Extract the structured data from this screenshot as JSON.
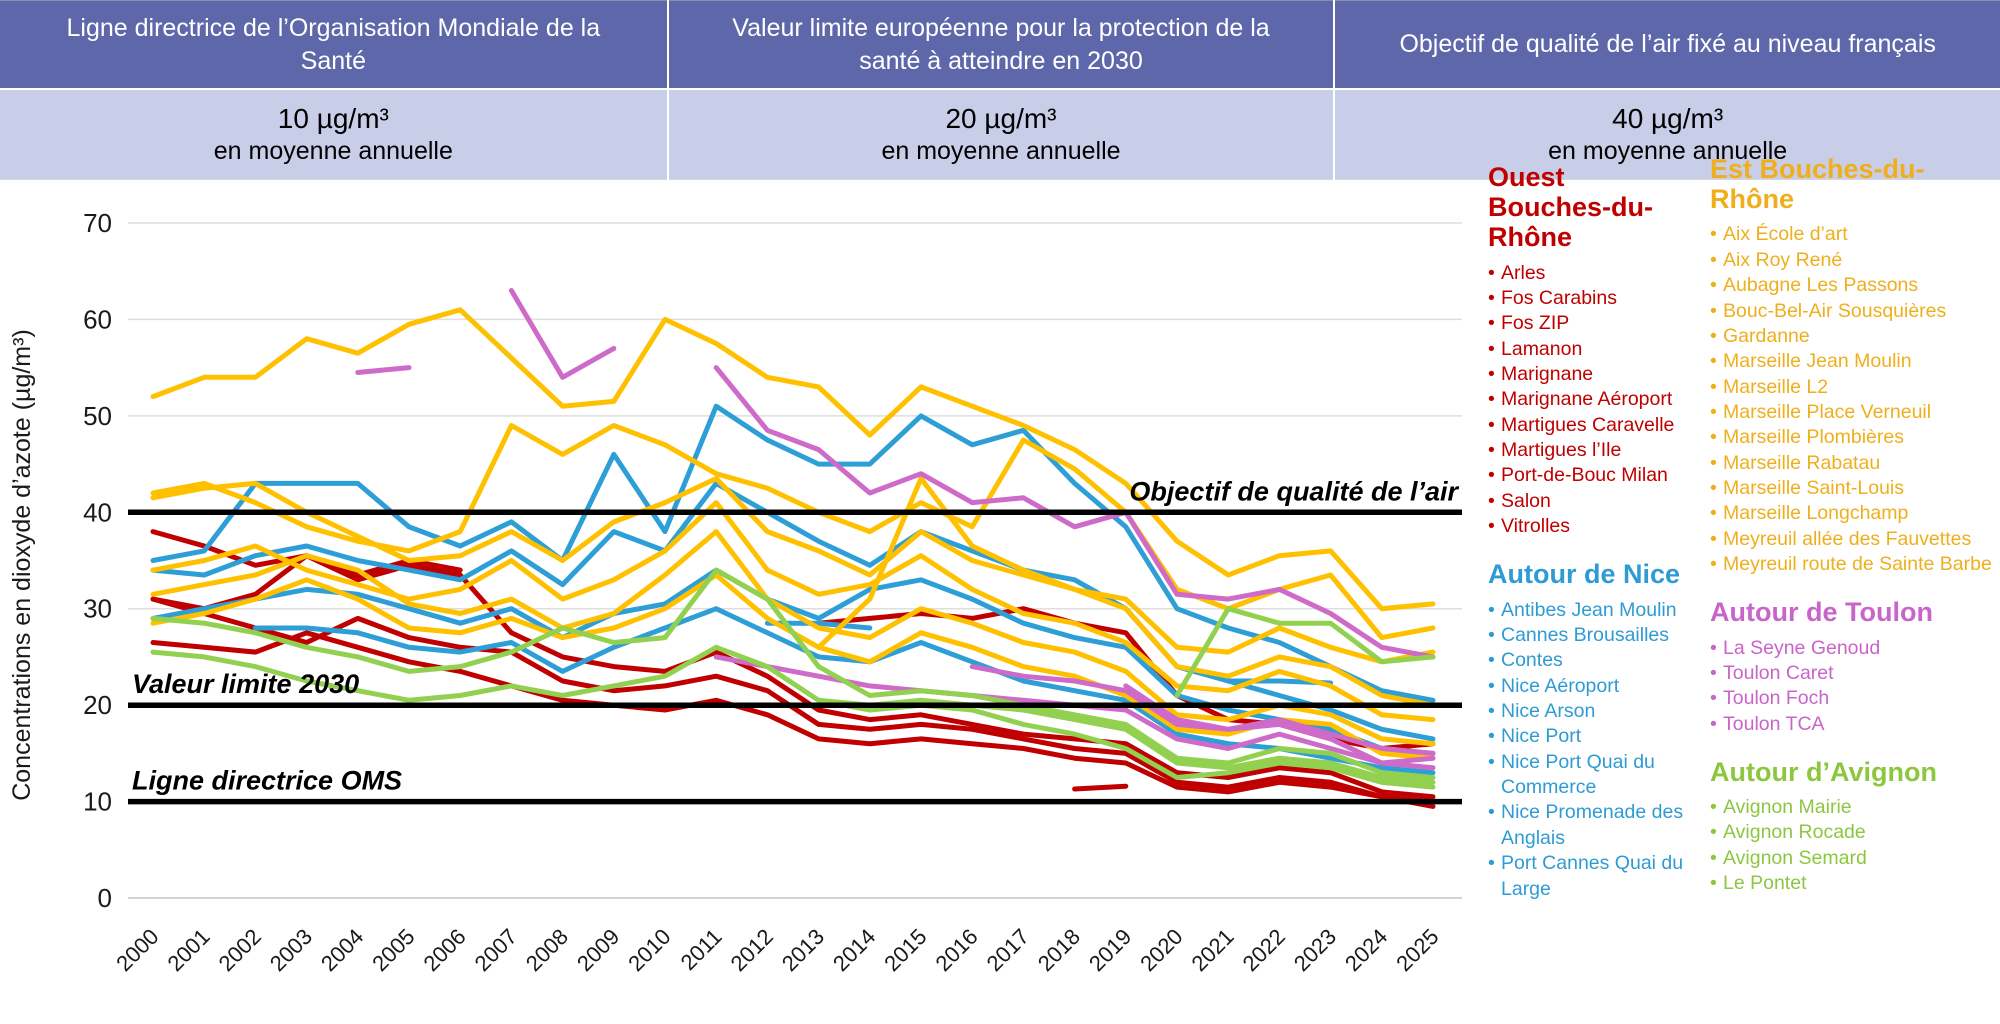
{
  "header": {
    "columns": [
      {
        "title": "Ligne directrice de l’Organisation Mondiale de la Santé",
        "value": "10 µg/m³",
        "note": "en moyenne annuelle"
      },
      {
        "title": "Valeur limite européenne pour la protection de la santé à atteindre en 2030",
        "value": "20 µg/m³",
        "note": "en moyenne annuelle"
      },
      {
        "title": "Objectif de qualité de l’air fixé au niveau français",
        "value": "40 µg/m³",
        "note": "en moyenne annuelle"
      }
    ]
  },
  "chart_data": {
    "type": "line",
    "title": "",
    "xlabel": "",
    "ylabel": "Concentrations en dioxyde d’azote (µg/m³)",
    "ylim": [
      0,
      70
    ],
    "yticks": [
      0,
      10,
      20,
      30,
      40,
      50,
      60,
      70
    ],
    "grid": "horizontal",
    "legend_position": "right",
    "categories": [
      2000,
      2001,
      2002,
      2003,
      2004,
      2005,
      2006,
      2007,
      2008,
      2009,
      2010,
      2011,
      2012,
      2013,
      2014,
      2015,
      2016,
      2017,
      2018,
      2019,
      2020,
      2021,
      2022,
      2023,
      2024,
      2025
    ],
    "colors": {
      "ouest": "#c00000",
      "nice": "#2e9fd6",
      "est": "#ffc000",
      "toulon": "#ce6bc8",
      "avignon": "#92d050"
    },
    "reference_lines": [
      {
        "value": 40,
        "label": "Objectif de qualité de l’air",
        "align": "right"
      },
      {
        "value": 20,
        "label": "Valeur limite 2030",
        "align": "left"
      },
      {
        "value": 10,
        "label": "Ligne directrice OMS",
        "align": "left"
      }
    ],
    "series": [
      {
        "name": "Marignane",
        "group": "ouest",
        "start": 2000,
        "values": [
          38,
          36.5,
          34.5,
          35.5,
          33.5,
          35,
          34
        ]
      },
      {
        "name": "Fos Carabins",
        "group": "ouest",
        "start": 2000,
        "values": [
          31,
          30,
          31.5,
          35.5,
          33,
          34.5,
          33.5,
          27.5,
          25,
          24,
          23.5,
          25.5,
          23,
          19.5,
          18.5,
          19,
          18,
          17,
          16.5,
          16,
          13,
          12.5,
          13.5,
          13,
          11,
          10.5
        ]
      },
      {
        "name": "Port-de-Bouc Milan",
        "group": "ouest",
        "start": 2000,
        "values": [
          31,
          29.5,
          28,
          26.5,
          29,
          27,
          26,
          25.5,
          22.5,
          21.5,
          22,
          23,
          21.5,
          18,
          17.5,
          18,
          17.5,
          16.5,
          15.5,
          15,
          12,
          11.5,
          12.5,
          12,
          10.5,
          9.5
        ]
      },
      {
        "name": "Salon",
        "group": "ouest",
        "start": 2000,
        "values": [
          26.5,
          26,
          25.5,
          27.5,
          26,
          24.5,
          23.5,
          22,
          20.5,
          20,
          19.5,
          20.5,
          19,
          16.5,
          16,
          16.5,
          16,
          15.5,
          14.5,
          14,
          11.5,
          11,
          12,
          11.5,
          10.5,
          10
        ]
      },
      {
        "name": "Martigues l’Ile",
        "group": "ouest",
        "start": 2013,
        "values": [
          28.5,
          29,
          29.5,
          29,
          30,
          28.5,
          27.5,
          21,
          18.5,
          18,
          16.5,
          15.5,
          16
        ]
      },
      {
        "name": "Arles",
        "group": "ouest",
        "start": 2018,
        "values": [
          11.3,
          11.6
        ]
      },
      {
        "name": "Nice Promenade des Anglais",
        "group": "nice",
        "start": 2000,
        "values": [
          35,
          36,
          43,
          43,
          43,
          38.5,
          36.5,
          39,
          35,
          46,
          38,
          51,
          47.5,
          45,
          45,
          50,
          47,
          48.5,
          43,
          38.5,
          30,
          28,
          26.5,
          24,
          21.5,
          20.5
        ]
      },
      {
        "name": "Nice Arson",
        "group": "nice",
        "start": 2000,
        "values": [
          34,
          33.5,
          35.5,
          36.5,
          35,
          34,
          33,
          36,
          32.5,
          38,
          36,
          43,
          40,
          37,
          34.5,
          38,
          36,
          34,
          33,
          30,
          24,
          22.5,
          21,
          19.5,
          17.5,
          16.5
        ]
      },
      {
        "name": "Cannes Brousailles",
        "group": "nice",
        "start": 2000,
        "values": [
          29,
          30,
          31,
          32,
          31.5,
          30,
          28.5,
          30,
          27,
          29.5,
          30.5,
          34,
          31,
          29,
          32,
          33,
          31,
          28.5,
          27,
          26,
          21,
          19.5,
          18.5,
          17.5,
          15.5,
          15
        ]
      },
      {
        "name": "Antibes Jean Moulin",
        "group": "nice",
        "start": 2002,
        "values": [
          28,
          28,
          27.5,
          26,
          25.5,
          26.5,
          23.5,
          26,
          28,
          30,
          27.5,
          25,
          24.5,
          26.5,
          24.5,
          22.5,
          21.5,
          20.5,
          17,
          16,
          15.5,
          14.5,
          13.5,
          13
        ]
      },
      {
        "name": "Nice Port",
        "group": "nice",
        "start": 2012,
        "values": [
          28.5,
          28.5,
          28
        ]
      },
      {
        "name": "Nice Port Quai du Commerce",
        "group": "nice",
        "start": 2021,
        "values": [
          22.5,
          22.5,
          22.3
        ]
      },
      {
        "name": "Marseille Rabatau",
        "group": "est",
        "start": 2000,
        "values": [
          52,
          54,
          54,
          58,
          56.5,
          59.5,
          61,
          56,
          51,
          51.5,
          60,
          57.5,
          54,
          53,
          48,
          53,
          51,
          49,
          46.5,
          43,
          37,
          33.5,
          35.5,
          36,
          30,
          30.5
        ]
      },
      {
        "name": "Marseille Plombières",
        "group": "est",
        "start": 2000,
        "values": [
          42,
          43,
          41,
          38.5,
          37,
          36,
          38,
          49,
          46,
          49,
          47,
          44,
          42.5,
          40,
          38,
          41,
          38.5,
          47.5,
          44.5,
          40,
          32,
          30,
          32,
          33.5,
          27,
          28
        ]
      },
      {
        "name": "Marseille Saint-Louis",
        "group": "est",
        "start": 2000,
        "values": [
          41.5,
          42.5,
          43,
          40,
          37.5,
          35,
          35.5,
          38,
          35,
          39,
          41,
          43.5,
          38,
          36,
          33.5,
          38,
          35,
          33.5,
          32,
          31,
          26,
          25.5,
          28,
          26,
          24.5,
          25.5
        ]
      },
      {
        "name": "Aix Roy René",
        "group": "est",
        "start": 2000,
        "values": [
          34,
          35,
          36.5,
          34,
          32.5,
          31,
          32,
          35,
          31,
          33,
          36,
          41,
          34,
          31.5,
          32.5,
          35.5,
          32,
          29.5,
          28.5,
          26.5,
          22,
          21.5,
          23.5,
          22,
          19,
          18.5
        ]
      },
      {
        "name": "Marseille Longchamp",
        "group": "est",
        "start": 2000,
        "values": [
          31.5,
          32.5,
          33.5,
          35.5,
          34,
          30.5,
          29.5,
          31,
          28,
          29.5,
          33.5,
          38,
          31,
          28,
          27,
          30,
          28.5,
          26.5,
          25.5,
          23.5,
          19,
          18.5,
          20,
          19,
          16.5,
          16
        ]
      },
      {
        "name": "Gardanne",
        "group": "est",
        "start": 2000,
        "values": [
          28.5,
          29.5,
          31,
          33,
          31,
          28,
          27.5,
          29,
          27,
          28,
          30,
          33.5,
          29,
          26,
          24.5,
          27.5,
          26,
          24,
          23,
          21,
          17.5,
          17,
          18.5,
          18,
          15,
          14.5
        ]
      },
      {
        "name": "Marseille Jean Moulin",
        "group": "est",
        "start": 2013,
        "values": [
          26,
          31,
          43.5,
          36.5,
          34,
          32,
          30,
          24,
          23,
          25,
          24,
          21,
          20
        ]
      },
      {
        "name": "Toulon Foch",
        "group": "toulon",
        "start": 2004,
        "values": [
          54.5,
          55,
          null,
          63,
          54,
          57,
          null,
          55,
          48.5,
          46.5,
          42,
          44,
          41,
          41.5,
          38.5,
          40,
          31.5,
          31,
          32,
          29.5,
          26,
          25
        ]
      },
      {
        "name": "Toulon Caret",
        "group": "toulon",
        "start": 2011,
        "values": [
          25,
          24,
          23,
          22,
          21.5,
          21,
          20.5,
          20,
          19.5,
          16.5,
          15.5,
          17,
          15.5,
          14,
          14.5
        ]
      },
      {
        "name": "La Seyne Genoud",
        "group": "toulon",
        "start": 2016,
        "values": [
          24,
          23,
          22.5,
          21.5,
          18,
          17.5,
          18.5,
          17,
          15.5,
          15
        ]
      },
      {
        "name": "Toulon TCA",
        "group": "toulon",
        "start": 2019,
        "values": [
          22,
          18.5,
          17.5,
          18,
          16.5,
          14,
          13.5
        ]
      },
      {
        "name": "Avignon Rocade",
        "group": "avignon",
        "start": 2000,
        "values": [
          29,
          28.5,
          27.5,
          26,
          25,
          23.5,
          24,
          25.5,
          28,
          26.5,
          27,
          34,
          31,
          24,
          21,
          21.5,
          21,
          20,
          19,
          18,
          14.5,
          14,
          15.5,
          15,
          13,
          12.5
        ]
      },
      {
        "name": "Avignon Mairie",
        "group": "avignon",
        "start": 2000,
        "values": [
          25.5,
          25,
          24,
          22.5,
          21.5,
          20.5,
          21,
          22,
          21,
          22,
          23,
          26,
          24,
          20.5,
          19.5,
          20,
          19.5,
          18,
          17,
          15.5,
          12.5,
          13,
          14,
          13.5,
          12,
          11.5
        ]
      },
      {
        "name": "Le Pontet",
        "group": "avignon",
        "start": 2013,
        "values": [
          20.5,
          20,
          20.5,
          20,
          19.5,
          18.5,
          17.5,
          14,
          13.5,
          14.5,
          14,
          12.5,
          12
        ]
      },
      {
        "name": "Avignon Semard",
        "group": "avignon",
        "start": 2020,
        "values": [
          21,
          30,
          28.5,
          28.5,
          24.5,
          25
        ]
      }
    ]
  },
  "legend": {
    "groups": [
      {
        "column": 1,
        "group": "ouest",
        "text_color": "#c00000",
        "title": "Ouest Bouches-du-Rhône",
        "stations": [
          "Arles",
          "Fos Carabins",
          "Fos ZIP",
          "Lamanon",
          "Marignane",
          "Marignane Aéroport",
          "Martigues Caravelle",
          "Martigues l’Ile",
          "Port-de-Bouc Milan",
          "Salon",
          "Vitrolles"
        ]
      },
      {
        "column": 1,
        "group": "nice",
        "text_color": "#2e9bd5",
        "title": "Autour de Nice",
        "stations": [
          "Antibes Jean Moulin",
          "Cannes Brousailles",
          "Contes",
          "Nice Aéroport",
          "Nice Arson",
          "Nice Port",
          "Nice Port Quai du Commerce",
          "Nice Promenade des Anglais",
          "Port Cannes Quai du Large"
        ]
      },
      {
        "column": 2,
        "group": "est",
        "text_color": "#efaf1d",
        "title": "Est Bouches-du-Rhône",
        "stations": [
          "Aix École d’art",
          "Aix Roy René",
          "Aubagne Les Passons",
          "Bouc-Bel-Air Sousquières",
          "Gardanne",
          "Marseille Jean Moulin",
          "Marseille L2",
          "Marseille Place Verneuil",
          "Marseille Plombières",
          "Marseille Rabatau",
          "Marseille Saint-Louis",
          "Marseille Longchamp",
          "Meyreuil allée des Fauvettes",
          "Meyreuil route de Sainte Barbe"
        ]
      },
      {
        "column": 2,
        "group": "toulon",
        "text_color": "#c964c9",
        "title": "Autour de Toulon",
        "stations": [
          "La Seyne Genoud",
          "Toulon Caret",
          "Toulon Foch",
          "Toulon TCA"
        ]
      },
      {
        "column": 2,
        "group": "avignon",
        "text_color": "#8dc63f",
        "title": "Autour d’Avignon",
        "stations": [
          "Avignon Mairie",
          "Avignon Rocade",
          "Avignon Semard",
          "Le Pontet"
        ]
      }
    ]
  }
}
